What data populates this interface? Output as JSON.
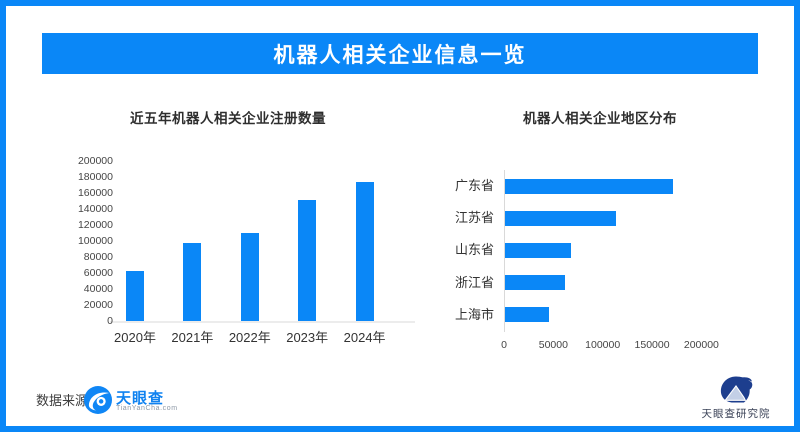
{
  "header": {
    "title": "机器人相关企业信息一览"
  },
  "chart_data": [
    {
      "type": "bar",
      "orientation": "vertical",
      "title": "近五年机器人相关企业注册数量",
      "categories": [
        "2020年",
        "2021年",
        "2022年",
        "2023年",
        "2024年"
      ],
      "values": [
        62000,
        97000,
        110000,
        151000,
        174000
      ],
      "xlabel": "",
      "ylabel": "",
      "ylim": [
        0,
        200000
      ],
      "yticks": [
        0,
        20000,
        40000,
        60000,
        80000,
        100000,
        120000,
        140000,
        160000,
        180000,
        200000
      ],
      "grid": false,
      "legend": false,
      "bar_color": "#0a87f7"
    },
    {
      "type": "bar",
      "orientation": "horizontal",
      "title": "机器人相关企业地区分布",
      "categories": [
        "广东省",
        "江苏省",
        "山东省",
        "浙江省",
        "上海市"
      ],
      "values": [
        170000,
        112000,
        67000,
        61000,
        45000
      ],
      "xlabel": "",
      "ylabel": "",
      "xlim": [
        0,
        200000
      ],
      "xticks": [
        0,
        50000,
        100000,
        150000,
        200000
      ],
      "grid": false,
      "legend": false,
      "bar_color": "#0a87f7"
    }
  ],
  "footer": {
    "source_label": "数据来源：",
    "tianyancha_name": "天眼查",
    "tianyancha_subtext": "TianYanCha.com",
    "institute_label": "天眼查研究院"
  },
  "colors": {
    "accent": "#0a87f7",
    "navy": "#1d3e8e",
    "tianyancha_blue": "#0f82f0"
  }
}
